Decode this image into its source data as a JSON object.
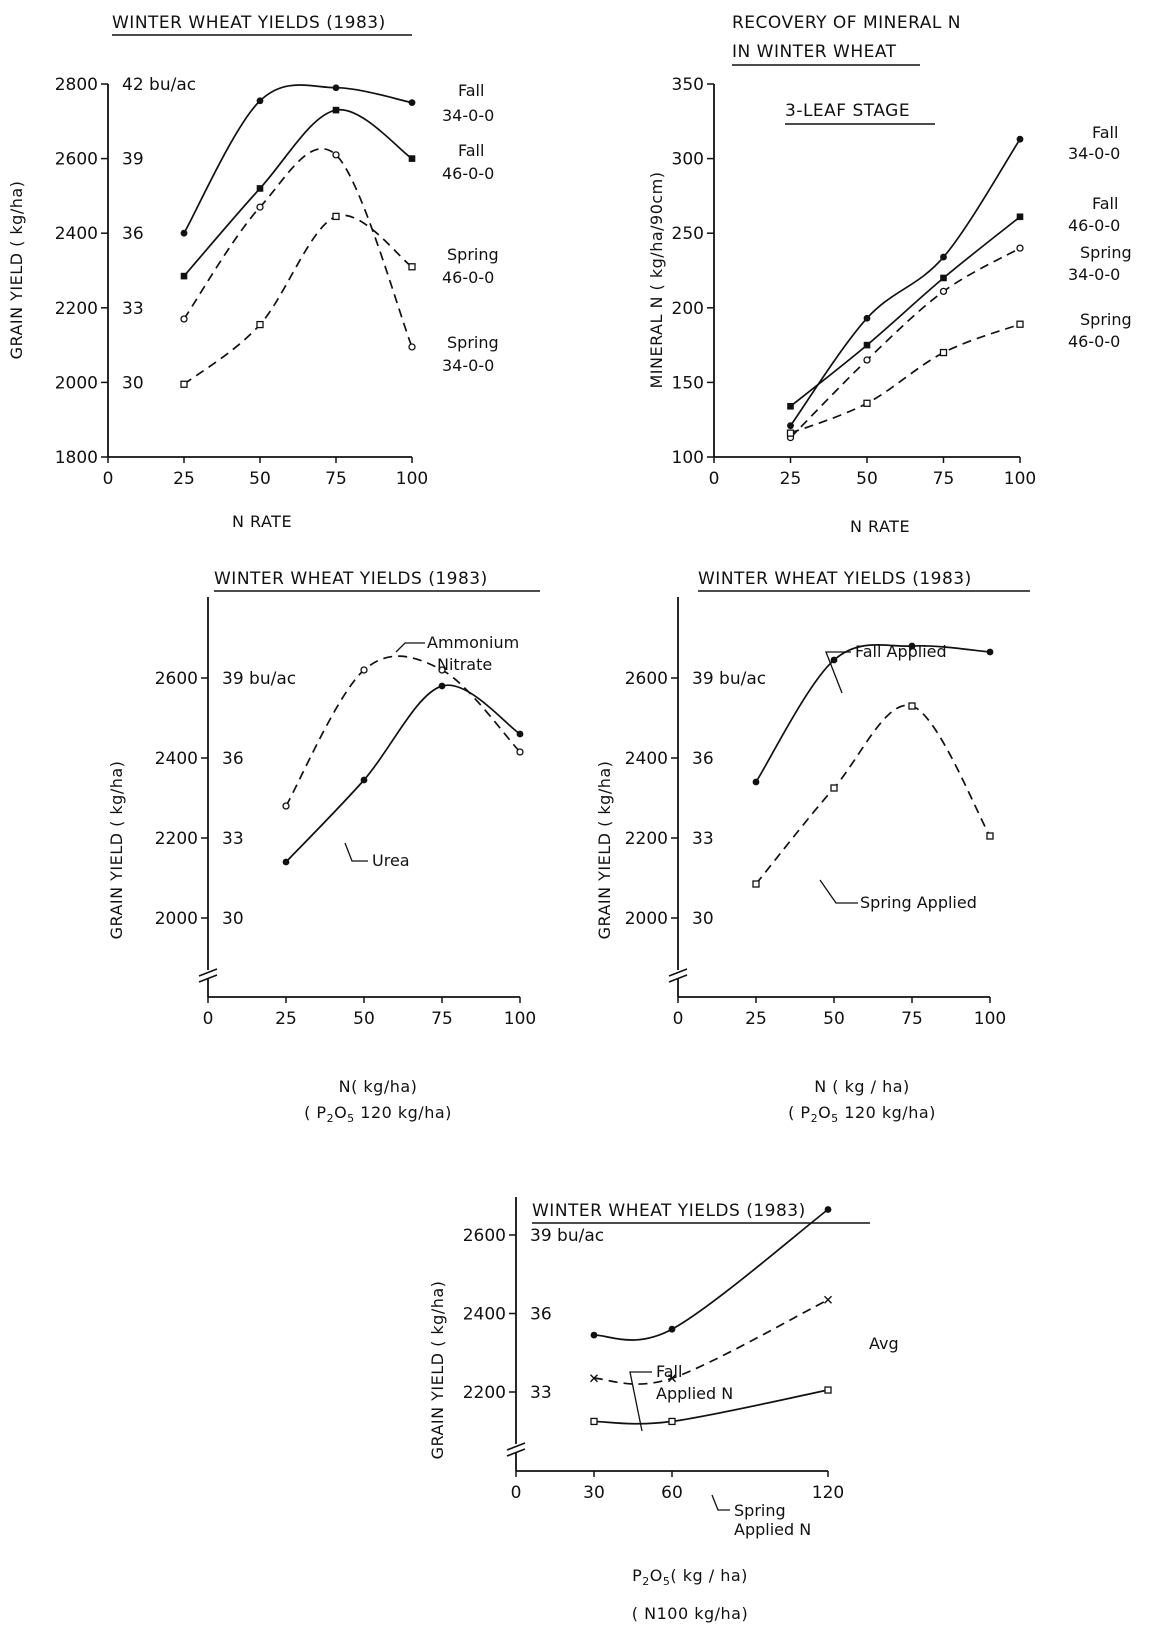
{
  "chart_data": [
    {
      "type": "line",
      "title": "WINTER WHEAT YIELDS (1983)",
      "xlabel": "N RATE",
      "ylabel": "GRAIN YIELD ( kg/ha)",
      "xlim": [
        0,
        100
      ],
      "ylim": [
        1800,
        2800
      ],
      "x_ticks": [
        "0",
        "25",
        "50",
        "75",
        "100"
      ],
      "y_ticks": [
        "1800",
        "2000",
        "2200",
        "2400",
        "2600",
        "2800"
      ],
      "y2_ticks": [
        "30",
        "33",
        "36",
        "39",
        "42 bu/ac"
      ],
      "x": [
        25,
        50,
        75,
        100
      ],
      "series": [
        {
          "name": "Fall 34-0-0",
          "values": [
            2400,
            2755,
            2790,
            2750
          ]
        },
        {
          "name": "Fall 46-0-0",
          "values": [
            2285,
            2520,
            2730,
            2600
          ]
        },
        {
          "name": "Spring 34-0-0",
          "values": [
            2170,
            2470,
            2610,
            2095
          ]
        },
        {
          "name": "Spring 46-0-0",
          "values": [
            1995,
            2155,
            2445,
            2310
          ]
        }
      ]
    },
    {
      "type": "line",
      "title": "RECOVERY OF MINERAL N IN WINTER WHEAT",
      "subtitle": "3-LEAF STAGE",
      "xlabel": "N RATE",
      "ylabel": "MINERAL N (kg/ha/90cm)",
      "xlim": [
        0,
        100
      ],
      "ylim": [
        100,
        350
      ],
      "x_ticks": [
        "0",
        "25",
        "50",
        "75",
        "100"
      ],
      "y_ticks": [
        "100",
        "150",
        "200",
        "250",
        "300",
        "350"
      ],
      "x": [
        25,
        50,
        75,
        100
      ],
      "series": [
        {
          "name": "Fall 34-0-0",
          "values": [
            121,
            193,
            234,
            313
          ]
        },
        {
          "name": "Fall 46-0-0",
          "values": [
            134,
            175,
            220,
            261
          ]
        },
        {
          "name": "Spring 34-0-0",
          "values": [
            113,
            165,
            211,
            240
          ]
        },
        {
          "name": "Spring 46-0-0",
          "values": [
            116,
            136,
            170,
            189
          ]
        }
      ]
    },
    {
      "type": "line",
      "title": "WINTER WHEAT YIELDS (1983)",
      "xlabel": "N(kg/ha)",
      "xlabel2": "(P2O5 120 kg/ha)",
      "ylabel": "GRAIN YIELD (kg/ha)",
      "xlim": [
        0,
        100
      ],
      "ylim": [
        1800,
        2800
      ],
      "x_ticks": [
        "0",
        "25",
        "50",
        "75",
        "100"
      ],
      "y_ticks": [
        "2000",
        "2200",
        "2400",
        "2600"
      ],
      "y2_ticks": [
        "30",
        "33",
        "36",
        "39 bu/ac"
      ],
      "x": [
        25,
        50,
        75,
        100
      ],
      "series": [
        {
          "name": "Ammonium Nitrate",
          "values": [
            2280,
            2620,
            2620,
            2415
          ]
        },
        {
          "name": "Urea",
          "values": [
            2140,
            2345,
            2580,
            2460
          ]
        }
      ]
    },
    {
      "type": "line",
      "title": "WINTER WHEAT YIELDS (1983)",
      "xlabel": "N(kg/ha)",
      "xlabel2": "(P2O5 120 kg/ha)",
      "ylabel": "GRAIN YIELD (kg/ha)",
      "xlim": [
        0,
        100
      ],
      "ylim": [
        1800,
        2800
      ],
      "x_ticks": [
        "0",
        "25",
        "50",
        "75",
        "100"
      ],
      "y_ticks": [
        "2000",
        "2200",
        "2400",
        "2600"
      ],
      "y2_ticks": [
        "30",
        "33",
        "36",
        "39 bu/ac"
      ],
      "x": [
        25,
        50,
        75,
        100
      ],
      "series": [
        {
          "name": "Fall Applied",
          "values": [
            2340,
            2645,
            2680,
            2665
          ]
        },
        {
          "name": "Spring Applied",
          "values": [
            2085,
            2325,
            2530,
            2205
          ]
        }
      ]
    },
    {
      "type": "line",
      "title": "WINTER WHEAT YIELDS (1983)",
      "xlabel": "P2O5 (kg/ha)",
      "xlabel2": "(N100 kg/ha)",
      "ylabel": "GRAIN YIELD (kg/ha)",
      "xlim": [
        0,
        120
      ],
      "ylim": [
        1800,
        2800
      ],
      "x_ticks": [
        "0",
        "30",
        "60",
        "120"
      ],
      "y_ticks": [
        "2200",
        "2400",
        "2600"
      ],
      "y2_ticks": [
        "33",
        "36",
        "39 bu/ac"
      ],
      "x": [
        30,
        60,
        120
      ],
      "series": [
        {
          "name": "Fall Applied N",
          "values": [
            2345,
            2360,
            2665
          ]
        },
        {
          "name": "Avg",
          "values": [
            2235,
            2235,
            2435
          ]
        },
        {
          "name": "Spring Applied N",
          "values": [
            2125,
            2125,
            2205
          ]
        }
      ]
    }
  ],
  "labels": {
    "c1": {
      "title": "WINTER WHEAT YIELDS (1983)",
      "ylabel": "GRAIN YIELD ( kg/ha)",
      "xlabel": "N RATE",
      "s1a": "Fall",
      "s1b": "34-0-0",
      "s2a": "Fall",
      "s2b": "46-0-0",
      "s3a": "Spring",
      "s3b": "46-0-0",
      "s4a": "Spring",
      "s4b": "34-0-0"
    },
    "c2": {
      "title1": "RECOVERY OF MINERAL N",
      "title2": "IN WINTER WHEAT",
      "subtitle": "3-LEAF STAGE",
      "ylabel": "MINERAL N ( kg/ha/90cm)",
      "xlabel": "N RATE",
      "s1a": "Fall",
      "s1b": "34-0-0",
      "s2a": "Fall",
      "s2b": "46-0-0",
      "s3a": "Spring",
      "s3b": "34-0-0",
      "s4a": "Spring",
      "s4b": "46-0-0"
    },
    "c3": {
      "title": "WINTER WHEAT YIELDS (1983)",
      "ylabel": "GRAIN YIELD ( kg/ha)",
      "xlabel": "N( kg/ha)",
      "xlabel2a": "( P",
      "xlabel2b": "2",
      "xlabel2c": "O",
      "xlabel2d": "5",
      "xlabel2e": " 120 kg/ha)",
      "ann1a": "Ammonium",
      "ann1b": "Nitrate",
      "ann2": "Urea"
    },
    "c4": {
      "title": "WINTER WHEAT YIELDS (1983)",
      "ylabel": "GRAIN YIELD ( kg/ha)",
      "xlabel": "N ( kg / ha)",
      "xlabel2a": "( P",
      "xlabel2b": "2",
      "xlabel2c": "O",
      "xlabel2d": "5",
      "xlabel2e": " 120 kg/ha)",
      "ann1": "Fall Applied",
      "ann2": "Spring Applied"
    },
    "c5": {
      "title": "WINTER WHEAT YIELDS (1983)",
      "ylabel": "GRAIN YIELD ( kg/ha)",
      "xlabel_a": "P",
      "xlabel_b": "2",
      "xlabel_c": "O",
      "xlabel_d": "5",
      "xlabel_e": "( kg / ha)",
      "xlabel2": "( N100 kg/ha)",
      "ann1a": "Fall",
      "ann1b": "Applied N",
      "ann2": "Avg",
      "ann3a": "Spring",
      "ann3b": "Applied N"
    }
  }
}
